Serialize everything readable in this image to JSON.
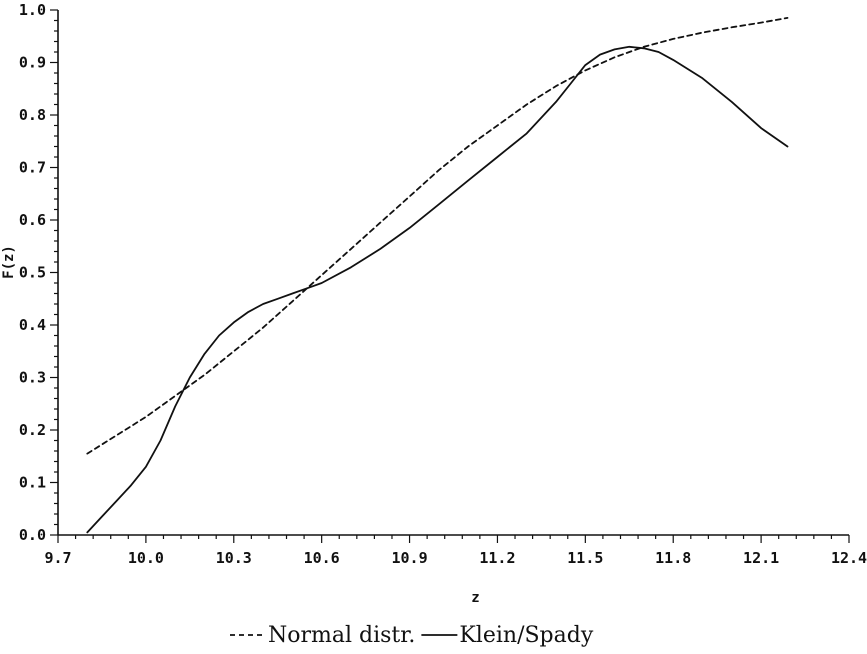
{
  "chart_data": {
    "type": "line",
    "xlabel": "z",
    "ylabel": "F(z)",
    "xlim": [
      9.7,
      12.4
    ],
    "ylim": [
      0.0,
      1.0
    ],
    "x_ticks": [
      "9.7",
      "10.0",
      "10.3",
      "10.6",
      "10.9",
      "11.2",
      "11.5",
      "11.8",
      "12.1",
      "12.4"
    ],
    "y_ticks": [
      "0.0",
      "0.1",
      "0.2",
      "0.3",
      "0.4",
      "0.5",
      "0.6",
      "0.7",
      "0.8",
      "0.9",
      "1.0"
    ],
    "grid": false,
    "legend_position": "bottom",
    "series": [
      {
        "name": "Normal distr.",
        "style": "dashed",
        "color": "#111111",
        "x": [
          9.8,
          9.9,
          10.0,
          10.1,
          10.2,
          10.3,
          10.4,
          10.5,
          10.6,
          10.7,
          10.8,
          10.9,
          11.0,
          11.1,
          11.2,
          11.3,
          11.4,
          11.5,
          11.6,
          11.7,
          11.8,
          11.9,
          12.0,
          12.1,
          12.19
        ],
        "y": [
          0.155,
          0.19,
          0.225,
          0.265,
          0.305,
          0.35,
          0.395,
          0.445,
          0.495,
          0.545,
          0.595,
          0.645,
          0.695,
          0.74,
          0.78,
          0.82,
          0.855,
          0.885,
          0.91,
          0.93,
          0.945,
          0.957,
          0.967,
          0.976,
          0.985
        ]
      },
      {
        "name": "Klein/Spady",
        "style": "solid",
        "color": "#111111",
        "x": [
          9.8,
          9.85,
          9.9,
          9.95,
          10.0,
          10.05,
          10.1,
          10.15,
          10.2,
          10.25,
          10.3,
          10.35,
          10.4,
          10.45,
          10.5,
          10.55,
          10.6,
          10.7,
          10.8,
          10.9,
          11.0,
          11.1,
          11.2,
          11.3,
          11.4,
          11.45,
          11.5,
          11.55,
          11.6,
          11.65,
          11.7,
          11.75,
          11.8,
          11.9,
          12.0,
          12.1,
          12.19
        ],
        "y": [
          0.005,
          0.035,
          0.065,
          0.095,
          0.13,
          0.18,
          0.245,
          0.3,
          0.345,
          0.38,
          0.405,
          0.425,
          0.44,
          0.45,
          0.46,
          0.47,
          0.48,
          0.51,
          0.545,
          0.585,
          0.63,
          0.675,
          0.72,
          0.765,
          0.825,
          0.86,
          0.895,
          0.915,
          0.925,
          0.93,
          0.927,
          0.92,
          0.905,
          0.87,
          0.825,
          0.775,
          0.74
        ]
      }
    ]
  }
}
